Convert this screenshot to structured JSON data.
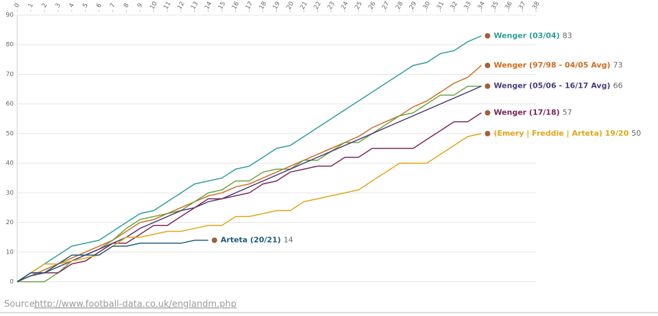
{
  "chart_data": {
    "type": "line",
    "xlim": [
      0,
      38
    ],
    "xticks": [
      0,
      1,
      2,
      3,
      4,
      5,
      6,
      7,
      8,
      9,
      10,
      11,
      12,
      13,
      14,
      15,
      16,
      17,
      18,
      19,
      20,
      21,
      22,
      23,
      24,
      25,
      26,
      27,
      28,
      29,
      30,
      31,
      32,
      33,
      34,
      35,
      36,
      37,
      38
    ],
    "ylim": [
      0,
      90
    ],
    "yticks": [
      0,
      10,
      20,
      30,
      40,
      50,
      60,
      70,
      80,
      90
    ],
    "grid": true,
    "series": [
      {
        "name": "Wenger (03/04)",
        "color": "#2a9d9a",
        "values": [
          0,
          3,
          6,
          9,
          12,
          13,
          14,
          17,
          20,
          23,
          24,
          27,
          30,
          33,
          34,
          35,
          38,
          39,
          42,
          45,
          46,
          49,
          52,
          55,
          58,
          61,
          64,
          67,
          70,
          73,
          74,
          77,
          78,
          81,
          83
        ]
      },
      {
        "name": "Wenger (97/98 - 04/05 Avg)",
        "color": "#cc6a1c",
        "values": [
          0,
          2,
          4,
          6,
          8,
          10,
          12,
          14,
          17,
          20,
          21,
          23,
          25,
          27,
          29,
          30,
          32,
          33,
          35,
          37,
          39,
          41,
          43,
          45,
          47,
          49,
          52,
          54,
          56,
          59,
          61,
          64,
          67,
          69,
          73
        ]
      },
      {
        "color": "#6aa341",
        "values": [
          0,
          0,
          0,
          3,
          7,
          9,
          11,
          14,
          18,
          21,
          22,
          23,
          24,
          27,
          30,
          31,
          34,
          34,
          37,
          38,
          38,
          41,
          41,
          44,
          47,
          47,
          50,
          53,
          56,
          57,
          60,
          63,
          63,
          66,
          66
        ]
      },
      {
        "name": "Wenger (05/06 - 16/17 Avg)",
        "color": "#4b3a7c",
        "values": [
          0,
          2,
          3,
          5,
          7,
          9,
          11,
          13,
          15,
          18,
          20,
          22,
          24,
          25,
          27,
          28,
          30,
          32,
          34,
          36,
          38,
          40,
          42,
          44,
          46,
          48,
          50,
          52,
          54,
          56,
          58,
          60,
          62,
          64,
          66
        ]
      },
      {
        "name": "Wenger (17/18)",
        "color": "#7b2452",
        "values": [
          0,
          3,
          3,
          3,
          6,
          7,
          10,
          13,
          13,
          16,
          19,
          19,
          22,
          25,
          28,
          28,
          29,
          30,
          33,
          34,
          37,
          38,
          39,
          39,
          42,
          42,
          45,
          45,
          45,
          45,
          48,
          51,
          54,
          54,
          57
        ]
      },
      {
        "name": "(Emery | Freddie | Arteta) 19/20",
        "color": "#e0a516",
        "values": [
          0,
          3,
          6,
          6,
          7,
          8,
          9,
          12,
          15,
          15,
          16,
          17,
          17,
          18,
          19,
          19,
          22,
          22,
          23,
          24,
          24,
          27,
          28,
          29,
          30,
          31,
          34,
          37,
          40,
          40,
          40,
          43,
          46,
          49,
          50
        ]
      },
      {
        "name": "Arteta (20/21)",
        "color": "#1f5b7e",
        "values": [
          0,
          3,
          3,
          6,
          9,
          9,
          9,
          12,
          12,
          13,
          13,
          13,
          13,
          14,
          14
        ]
      }
    ],
    "source_label": "Source:",
    "source_link": "http://www.football-data.co.uk/englandm.php"
  }
}
